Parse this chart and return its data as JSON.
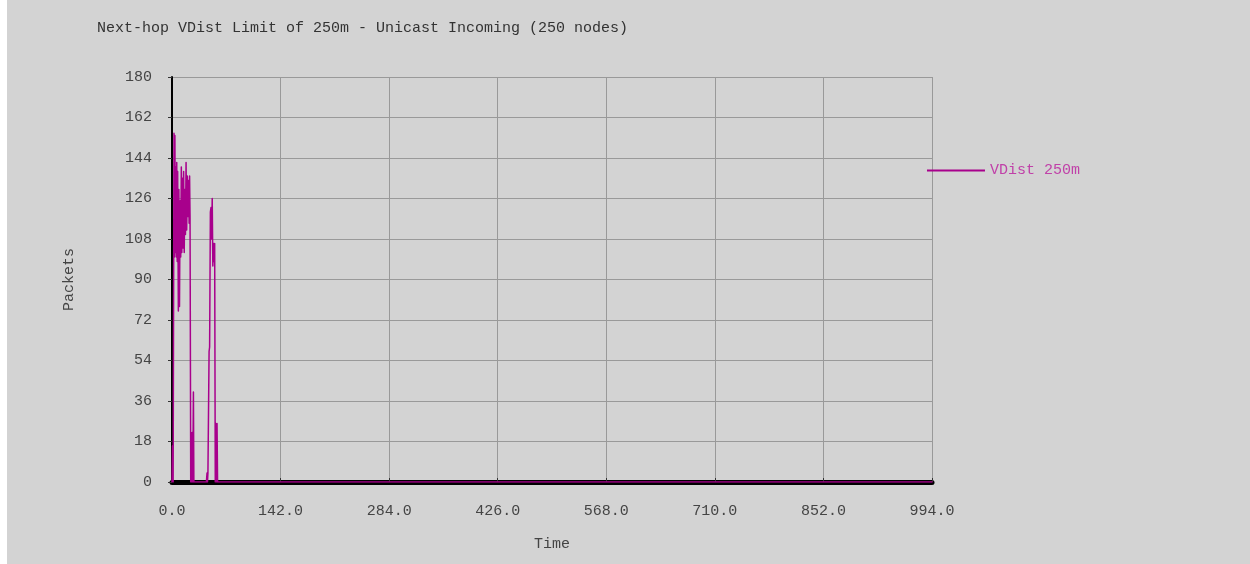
{
  "chart_data": {
    "type": "line",
    "title": "Next-hop VDist Limit of 250m - Unicast Incoming (250 nodes)",
    "xlabel": "Time",
    "ylabel": "Packets",
    "x": [
      0,
      0.6,
      1.5,
      2.6,
      3.2,
      3.8,
      4.4,
      5,
      5.6,
      6.2,
      6.8,
      7.4,
      8.3,
      9,
      9.8,
      10.6,
      11.4,
      12.2,
      12.8,
      13.6,
      14.4,
      15.2,
      16,
      16.8,
      17.6,
      18.4,
      19.2,
      20,
      20.8,
      21.6,
      22.4,
      23,
      23.6,
      24.5,
      25.2,
      25.8,
      26.4,
      27.2,
      28,
      28.6,
      45,
      45.8,
      46.4,
      47,
      48.5,
      49.2,
      50.2,
      51,
      51.8,
      52.6,
      53.4,
      54.2,
      55,
      55.8,
      56.6,
      57.4,
      58.2,
      58.9,
      59.6,
      994
    ],
    "series": [
      {
        "name": "VDist 250m",
        "color": "#a8008c",
        "values": [
          0,
          16,
          0,
          155,
          100,
          154,
          102,
          140,
          100,
          142,
          98,
          138,
          76,
          130,
          78,
          125,
          100,
          140,
          102,
          135,
          104,
          138,
          102,
          130,
          110,
          142,
          112,
          136,
          118,
          134,
          115,
          136,
          118,
          0,
          22,
          0,
          22,
          0,
          40,
          0,
          0,
          4,
          0,
          4,
          58,
          60,
          120,
          122,
          108,
          126,
          96,
          106,
          98,
          106,
          0,
          26,
          0,
          26,
          0,
          0
        ]
      }
    ],
    "xlim": [
      0,
      994
    ],
    "xticks": [
      {
        "value": 0,
        "label": "0.0"
      },
      {
        "value": 142,
        "label": "142.0"
      },
      {
        "value": 284,
        "label": "284.0"
      },
      {
        "value": 426,
        "label": "426.0"
      },
      {
        "value": 568,
        "label": "568.0"
      },
      {
        "value": 710,
        "label": "710.0"
      },
      {
        "value": 852,
        "label": "852.0"
      },
      {
        "value": 994,
        "label": "994.0"
      }
    ],
    "ylim": [
      0,
      180
    ],
    "yticks": [
      0,
      18,
      36,
      54,
      72,
      90,
      108,
      126,
      144,
      162,
      180
    ],
    "grid": true,
    "legend": "right",
    "marker": "none",
    "line_style": "solid"
  }
}
